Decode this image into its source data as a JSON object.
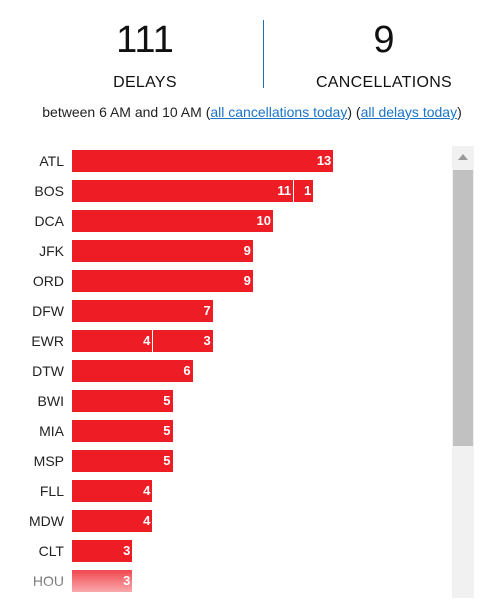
{
  "stats": {
    "delays": {
      "value": "111",
      "label": "DELAYS"
    },
    "cancellations": {
      "value": "9",
      "label": "CANCELLATIONS"
    }
  },
  "subline": {
    "prefix": "between 6 AM and 10 AM (",
    "link_cancellations": "all cancellations today",
    "middle": ") (",
    "link_delays": "all delays today",
    "suffix": ")"
  },
  "colors": {
    "bar": "#ee1c25",
    "link": "#1a73c9",
    "divider": "#1d6fb8"
  },
  "chart_data": {
    "type": "bar",
    "orientation": "horizontal",
    "stacked": true,
    "categories": [
      "ATL",
      "BOS",
      "DCA",
      "JFK",
      "ORD",
      "DFW",
      "EWR",
      "DTW",
      "BWI",
      "MIA",
      "MSP",
      "FLL",
      "MDW",
      "CLT",
      "HOU"
    ],
    "series": [
      {
        "values": [
          13,
          11,
          10,
          9,
          9,
          7,
          4,
          6,
          5,
          5,
          5,
          4,
          4,
          3,
          3
        ]
      },
      {
        "values": [
          0,
          1,
          0,
          0,
          0,
          0,
          3,
          0,
          0,
          0,
          0,
          0,
          0,
          0,
          0
        ]
      }
    ]
  }
}
